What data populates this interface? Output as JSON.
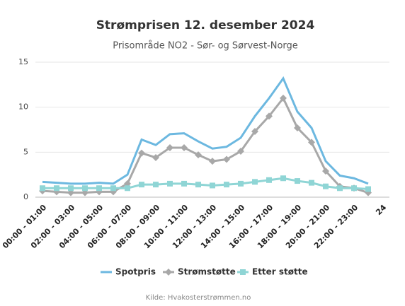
{
  "chart_data": {
    "type": "line",
    "title": "Strømprisen 12. desember 2024",
    "subtitle": "Prisområde NO2 - Sør- og Sørvest-Norge",
    "source": "Kilde: Hvakosterstrømmen.no",
    "categories": [
      "00:00 - 01:00",
      null,
      "02:00 - 03:00",
      null,
      "04:00 - 05:00",
      null,
      "06:00 - 07:00",
      null,
      "08:00 - 09:00",
      null,
      "10:00 - 11:00",
      null,
      "12:00 - 13:00",
      null,
      "14:00 - 15:00",
      null,
      "16:00 - 17:00",
      null,
      "18:00 - 19:00",
      null,
      "20:00 - 21:00",
      null,
      "22:00 - 23:00",
      null,
      "24"
    ],
    "series": [
      {
        "name": "Spotpris",
        "color": "#6cb8e0",
        "marker": "none",
        "values": [
          1.7,
          1.6,
          1.5,
          1.5,
          1.6,
          1.5,
          2.5,
          6.4,
          5.8,
          7.0,
          7.1,
          6.2,
          5.4,
          5.6,
          6.6,
          9.0,
          11.0,
          13.2,
          9.5,
          7.7,
          4.0,
          2.4,
          2.1,
          1.5,
          null
        ]
      },
      {
        "name": "Strømstøtte",
        "color": "#a8a8a8",
        "marker": "diamond",
        "values": [
          0.7,
          0.6,
          0.5,
          0.5,
          0.6,
          0.6,
          1.5,
          4.9,
          4.4,
          5.5,
          5.5,
          4.7,
          4.0,
          4.2,
          5.1,
          7.3,
          9.0,
          11.0,
          7.7,
          6.1,
          2.9,
          1.2,
          1.0,
          0.5,
          null
        ]
      },
      {
        "name": "Etter støtte",
        "color": "#8fd5d5",
        "marker": "square",
        "values": [
          1.0,
          1.0,
          1.0,
          1.0,
          1.0,
          1.0,
          1.0,
          1.4,
          1.4,
          1.5,
          1.5,
          1.4,
          1.3,
          1.4,
          1.5,
          1.7,
          1.9,
          2.1,
          1.8,
          1.6,
          1.2,
          1.0,
          1.0,
          0.9,
          null
        ]
      }
    ],
    "ylim": [
      0,
      15
    ],
    "yticks": [
      0,
      5,
      10,
      15
    ],
    "grid": true,
    "legend": "bottom"
  }
}
